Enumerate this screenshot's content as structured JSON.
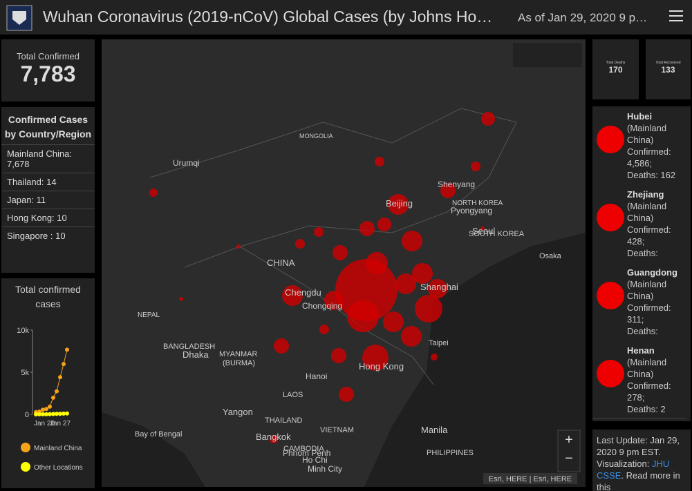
{
  "header": {
    "title": "Wuhan Coronavirus (2019-nCoV) Global Cases (by Johns Ho…",
    "date": "As of Jan 29, 2020 9 p…"
  },
  "total_confirmed": {
    "label": "Total Confirmed",
    "value": "7,783"
  },
  "country_list": {
    "title": "Confirmed Cases by Country/Region",
    "items": [
      "Mainland China: 7,678",
      "Thailand:  14",
      "Japan:  11",
      "Hong Kong:  10",
      "Singapore :  10"
    ]
  },
  "chart": {
    "title": "Total confirmed cases",
    "categories": [
      "Jan 20",
      null,
      null,
      null,
      null,
      null,
      null,
      "Jan 27",
      null,
      null
    ],
    "ylim": [
      0,
      10000
    ],
    "yticks": [
      0,
      {
        "value": 5000,
        "label": "5k"
      },
      {
        "value": 10000,
        "label": "10k"
      }
    ],
    "series": [
      {
        "name": "Mainland China",
        "color": "#f5a31a",
        "values": [
          278,
          326,
          547,
          639,
          916,
          1979,
          2737,
          4409,
          5970,
          7678
        ]
      },
      {
        "name": "Other Locations",
        "color": "#ffff00",
        "values": [
          4,
          6,
          8,
          14,
          25,
          40,
          57,
          64,
          87,
          105
        ]
      }
    ]
  },
  "deaths": {
    "label": "Total Deaths",
    "value": "170"
  },
  "recovered": {
    "label": "Total Recovered",
    "value": "133"
  },
  "map": {
    "labels": [
      "MONGOLIA",
      "Urumqi",
      "Shenyang",
      "NORTH KOREA",
      "Beijing",
      "Pyongyang",
      "Seoul",
      "SOUTH KOREA",
      "Osaka",
      "CHINA",
      "Shanghai",
      "Chengdu",
      "Chongqing",
      "NEPAL",
      "Taipei",
      "BANGLADESH",
      "Dhaka",
      "MYANMAR",
      "(BURMA)",
      "Hong Kong",
      "Hanoi",
      "LAOS",
      "Yangon",
      "THAILAND",
      "VIETNAM",
      "Manila",
      "Bay of Bengal",
      "Bangkok",
      "CAMBODIA",
      "Phnom Penh",
      "PHILIPPINES",
      "Ho Chi",
      "Minh City"
    ],
    "attribution": "Esri, HERE | Esri, HERE",
    "zoom_in": "+",
    "zoom_out": "−"
  },
  "provinces": [
    {
      "name": "Hubei",
      "region": "(Mainland China)",
      "confirmed": "Confirmed: 4,586;",
      "deaths": "Deaths: 162"
    },
    {
      "name": "Zhejiang",
      "region": "(Mainland China)",
      "confirmed": "Confirmed: 428;",
      "deaths": "Deaths:"
    },
    {
      "name": "Guangdong",
      "region": "(Mainland China)",
      "confirmed": "Confirmed: 311;",
      "deaths": "Deaths:"
    },
    {
      "name": "Henan",
      "region": "(Mainland China)",
      "confirmed": "Confirmed: 278;",
      "deaths": "Deaths: 2"
    }
  ],
  "update": {
    "text": "Last Update: Jan 29, 2020 9 pm EST. Visualization:",
    "link": "JHU CSSE",
    "end": ".",
    "more": "Read more in this"
  }
}
